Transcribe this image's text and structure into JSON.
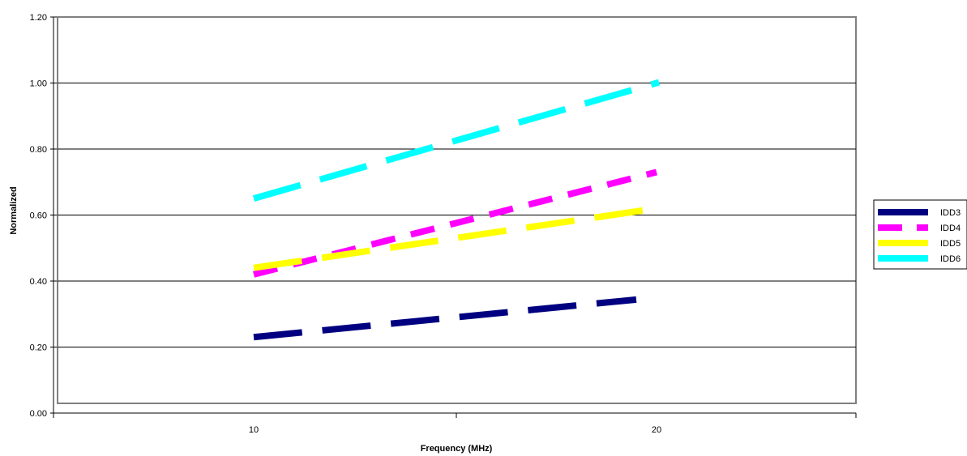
{
  "chart_data": {
    "type": "line",
    "title": "",
    "xlabel": "Frequency (MHz)",
    "ylabel": "Normalized",
    "categories": [
      "10",
      "20"
    ],
    "ylim": [
      0,
      1.2
    ],
    "yticks": [
      "0.00",
      "0.20",
      "0.40",
      "0.60",
      "0.80",
      "1.00",
      "1.20"
    ],
    "grid": "horizontal",
    "legend_position": "right",
    "series": [
      {
        "name": "IDD3",
        "color": "#000080",
        "values": [
          0.23,
          0.35
        ]
      },
      {
        "name": "IDD4",
        "color": "#ff00ff",
        "values": [
          0.42,
          0.73
        ]
      },
      {
        "name": "IDD5",
        "color": "#ffff00",
        "values": [
          0.44,
          0.62
        ]
      },
      {
        "name": "IDD6",
        "color": "#00ffff",
        "values": [
          0.65,
          1.0
        ]
      }
    ]
  }
}
